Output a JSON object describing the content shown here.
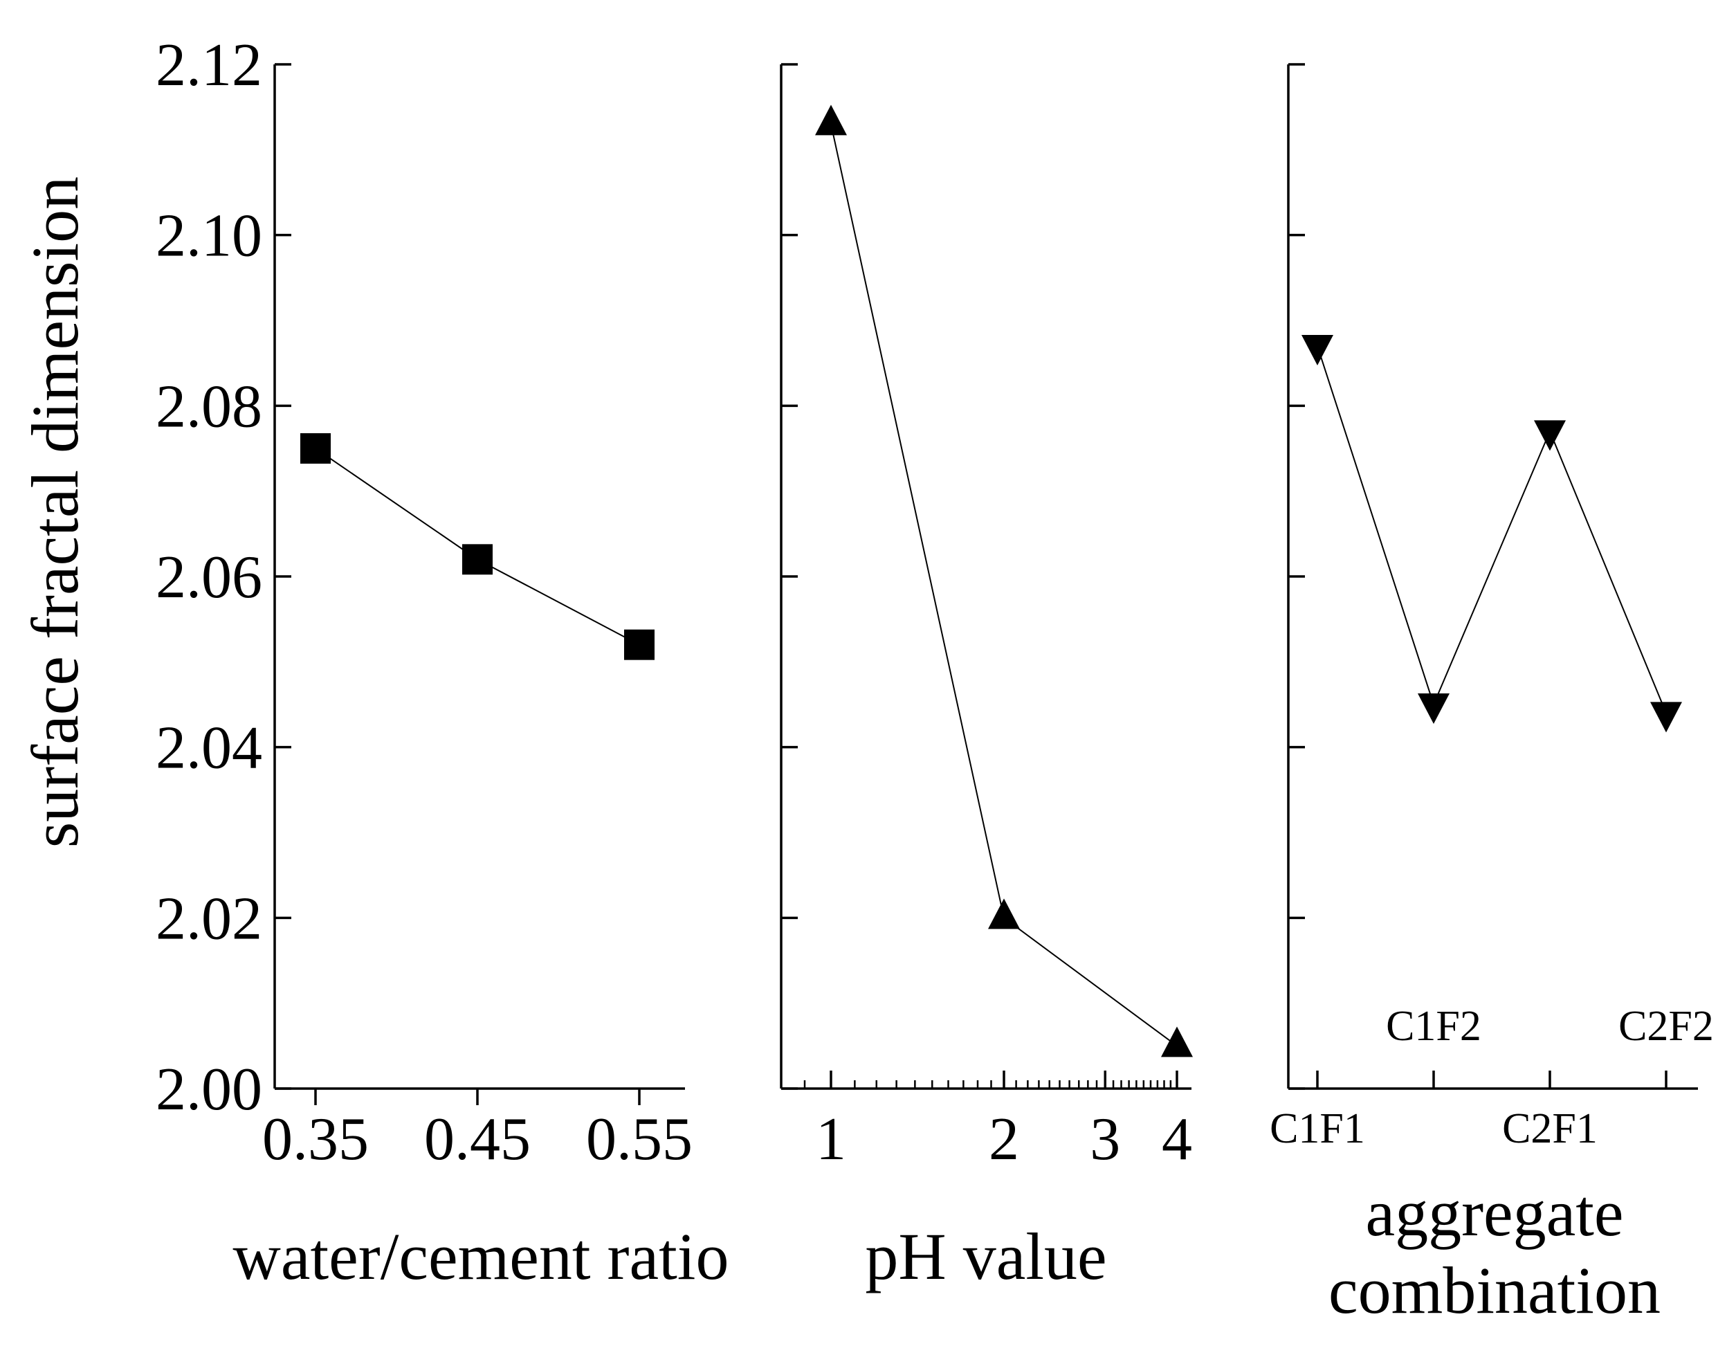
{
  "ylabel": "surface fractal dimension",
  "ylim": [
    2.0,
    2.12
  ],
  "yticks": [
    "2.00",
    "2.02",
    "2.04",
    "2.06",
    "2.08",
    "2.10",
    "2.12"
  ],
  "chart_data": [
    {
      "type": "line",
      "xlabel": "water/cement ratio",
      "xscale": "linear",
      "marker": "square",
      "x": [
        0.35,
        0.45,
        0.55
      ],
      "y": [
        2.075,
        2.062,
        2.052
      ],
      "xticks": [
        "0.35",
        "0.45",
        "0.55"
      ],
      "ylim": [
        2.0,
        2.12
      ]
    },
    {
      "type": "line",
      "xlabel": "pH value",
      "xscale": "log",
      "marker": "triangle-up",
      "x": [
        1,
        2,
        4
      ],
      "y": [
        2.113,
        2.02,
        2.005
      ],
      "xticks": [
        "1",
        "2",
        "3",
        "4"
      ],
      "ylim": [
        2.0,
        2.12
      ]
    },
    {
      "type": "line",
      "xlabel": "aggregate combination",
      "xscale": "category",
      "marker": "triangle-down",
      "categories": [
        "C1F1",
        "C1F2",
        "C2F1",
        "C2F2"
      ],
      "y": [
        2.087,
        2.045,
        2.077,
        2.044
      ],
      "ylim": [
        2.0,
        2.12
      ]
    }
  ],
  "colors": {
    "ink": "#000000",
    "background": "#ffffff"
  }
}
